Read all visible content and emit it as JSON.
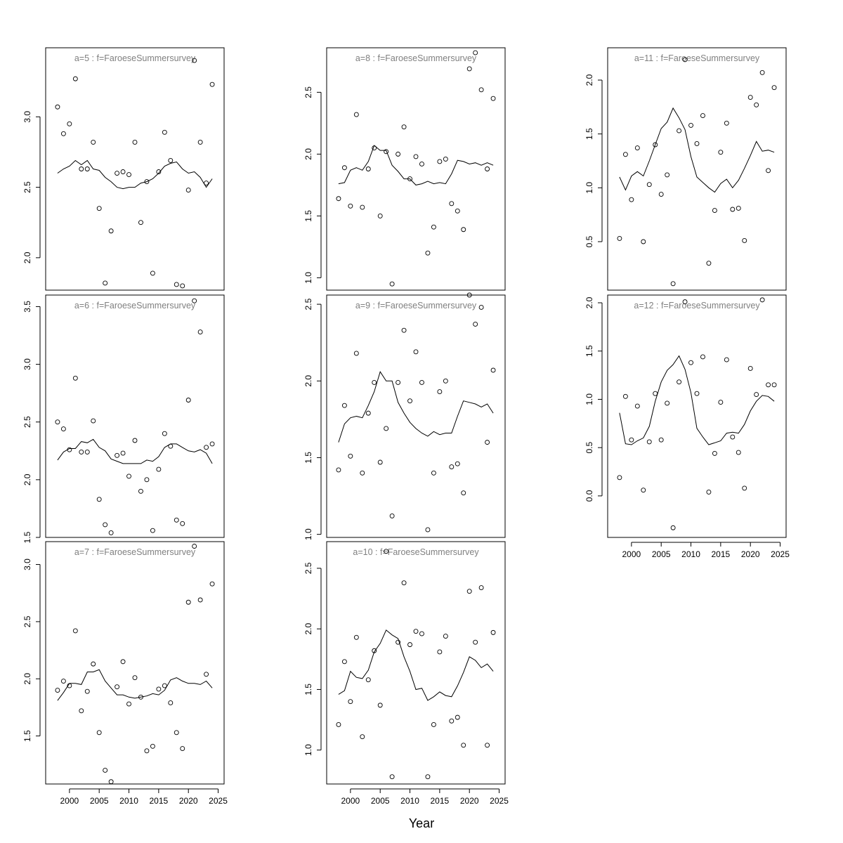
{
  "figure": {
    "xlabel": "Year"
  },
  "chart_data": [
    {
      "type": "scatter",
      "title": "a=5  :  f=FaroeseSummersurvey",
      "xlim": [
        1996,
        2026
      ],
      "ylim": [
        1.77,
        3.49
      ],
      "xticks": [
        2000,
        2005,
        2010,
        2015,
        2020,
        2025
      ],
      "yticks": [
        2.0,
        2.5,
        3.0
      ],
      "x_axis_shown": false,
      "points": {
        "x": [
          1998,
          1999,
          2000,
          2001,
          2002,
          2003,
          2004,
          2005,
          2006,
          2007,
          2008,
          2009,
          2010,
          2011,
          2012,
          2013,
          2014,
          2015,
          2016,
          2017,
          2018,
          2019,
          2020,
          2021,
          2022,
          2023,
          2024
        ],
        "y": [
          3.07,
          2.88,
          2.95,
          3.27,
          2.63,
          2.63,
          2.82,
          2.35,
          1.82,
          2.19,
          2.6,
          2.61,
          2.59,
          2.82,
          2.25,
          2.54,
          1.89,
          2.61,
          2.89,
          2.69,
          1.81,
          1.8,
          2.48,
          3.4,
          2.82,
          2.53,
          3.23
        ]
      },
      "fit": {
        "x": [
          1998,
          1999,
          2000,
          2001,
          2002,
          2003,
          2004,
          2005,
          2006,
          2007,
          2008,
          2009,
          2010,
          2011,
          2012,
          2013,
          2014,
          2015,
          2016,
          2017,
          2018,
          2019,
          2020,
          2021,
          2022,
          2023,
          2024
        ],
        "y": [
          2.6,
          2.63,
          2.65,
          2.69,
          2.66,
          2.69,
          2.63,
          2.62,
          2.57,
          2.54,
          2.5,
          2.49,
          2.5,
          2.5,
          2.53,
          2.54,
          2.56,
          2.6,
          2.65,
          2.67,
          2.68,
          2.63,
          2.6,
          2.61,
          2.57,
          2.5,
          2.56
        ]
      }
    },
    {
      "type": "scatter",
      "title": "a=6  :  f=FaroeseSummersurvey",
      "xlim": [
        1996,
        2026
      ],
      "ylim": [
        1.5,
        3.6
      ],
      "xticks": [
        2000,
        2005,
        2010,
        2015,
        2020,
        2025
      ],
      "yticks": [
        1.5,
        2.0,
        2.5,
        3.0,
        3.5
      ],
      "x_axis_shown": false,
      "points": {
        "x": [
          1998,
          1999,
          2000,
          2001,
          2002,
          2003,
          2004,
          2005,
          2006,
          2007,
          2008,
          2009,
          2010,
          2011,
          2012,
          2013,
          2014,
          2015,
          2016,
          2017,
          2018,
          2019,
          2020,
          2021,
          2022,
          2023,
          2024
        ],
        "y": [
          2.5,
          2.44,
          2.26,
          2.88,
          2.24,
          2.24,
          2.51,
          1.83,
          1.61,
          1.54,
          2.21,
          2.23,
          2.03,
          2.34,
          1.9,
          2.0,
          1.56,
          2.09,
          2.4,
          2.29,
          1.65,
          1.62,
          2.69,
          3.55,
          3.28,
          2.28,
          2.31
        ]
      },
      "fit": {
        "x": [
          1998,
          1999,
          2000,
          2001,
          2002,
          2003,
          2004,
          2005,
          2006,
          2007,
          2008,
          2009,
          2010,
          2011,
          2012,
          2013,
          2014,
          2015,
          2016,
          2017,
          2018,
          2019,
          2020,
          2021,
          2022,
          2023,
          2024
        ],
        "y": [
          2.17,
          2.24,
          2.27,
          2.27,
          2.33,
          2.32,
          2.35,
          2.28,
          2.25,
          2.18,
          2.16,
          2.14,
          2.14,
          2.14,
          2.14,
          2.17,
          2.16,
          2.2,
          2.28,
          2.31,
          2.31,
          2.28,
          2.25,
          2.24,
          2.26,
          2.23,
          2.14
        ]
      }
    },
    {
      "type": "scatter",
      "title": "a=7  :  f=FaroeseSummersurvey",
      "xlim": [
        1996,
        2026
      ],
      "ylim": [
        1.08,
        3.2
      ],
      "xticks": [
        2000,
        2005,
        2010,
        2015,
        2020,
        2025
      ],
      "yticks": [
        1.5,
        2.0,
        2.5,
        3.0
      ],
      "x_axis_shown": true,
      "points": {
        "x": [
          1998,
          1999,
          2000,
          2001,
          2002,
          2003,
          2004,
          2005,
          2006,
          2007,
          2008,
          2009,
          2010,
          2011,
          2012,
          2013,
          2014,
          2015,
          2016,
          2017,
          2018,
          2019,
          2020,
          2021,
          2022,
          2023,
          2024
        ],
        "y": [
          1.9,
          1.98,
          1.94,
          2.42,
          1.72,
          1.89,
          2.13,
          1.53,
          1.2,
          1.1,
          1.93,
          2.15,
          1.78,
          2.01,
          1.84,
          1.37,
          1.41,
          1.91,
          1.94,
          1.79,
          1.53,
          1.39,
          2.67,
          3.16,
          2.69,
          2.04,
          2.83
        ]
      },
      "fit": {
        "x": [
          1998,
          1999,
          2000,
          2001,
          2002,
          2003,
          2004,
          2005,
          2006,
          2007,
          2008,
          2009,
          2010,
          2011,
          2012,
          2013,
          2014,
          2015,
          2016,
          2017,
          2018,
          2019,
          2020,
          2021,
          2022,
          2023,
          2024
        ],
        "y": [
          1.81,
          1.88,
          1.96,
          1.96,
          1.95,
          2.06,
          2.06,
          2.08,
          1.98,
          1.92,
          1.86,
          1.86,
          1.84,
          1.83,
          1.84,
          1.85,
          1.87,
          1.86,
          1.9,
          1.99,
          2.01,
          1.98,
          1.96,
          1.96,
          1.95,
          1.98,
          1.92
        ]
      }
    },
    {
      "type": "scatter",
      "title": "a=8  :  f=FaroeseSummersurvey",
      "xlim": [
        1996,
        2026
      ],
      "ylim": [
        0.9,
        2.86
      ],
      "xticks": [
        2000,
        2005,
        2010,
        2015,
        2020,
        2025
      ],
      "yticks": [
        1.0,
        1.5,
        2.0,
        2.5
      ],
      "x_axis_shown": false,
      "points": {
        "x": [
          1998,
          1999,
          2000,
          2001,
          2002,
          2003,
          2004,
          2005,
          2006,
          2007,
          2008,
          2009,
          2010,
          2011,
          2012,
          2013,
          2014,
          2015,
          2016,
          2017,
          2018,
          2019,
          2020,
          2021,
          2022,
          2023,
          2024
        ],
        "y": [
          1.64,
          1.89,
          1.58,
          2.32,
          1.57,
          1.88,
          2.05,
          1.5,
          2.02,
          0.95,
          2.0,
          2.22,
          1.8,
          1.98,
          1.92,
          1.2,
          1.41,
          1.94,
          1.96,
          1.6,
          1.54,
          1.39,
          2.69,
          2.82,
          2.52,
          1.88,
          2.45
        ]
      },
      "fit": {
        "x": [
          1998,
          1999,
          2000,
          2001,
          2002,
          2003,
          2004,
          2005,
          2006,
          2007,
          2008,
          2009,
          2010,
          2011,
          2012,
          2013,
          2014,
          2015,
          2016,
          2017,
          2018,
          2019,
          2020,
          2021,
          2022,
          2023,
          2024
        ],
        "y": [
          1.76,
          1.77,
          1.87,
          1.89,
          1.87,
          1.94,
          2.07,
          2.03,
          2.03,
          1.91,
          1.86,
          1.8,
          1.8,
          1.75,
          1.76,
          1.78,
          1.76,
          1.77,
          1.76,
          1.84,
          1.95,
          1.94,
          1.92,
          1.93,
          1.91,
          1.93,
          1.91
        ]
      }
    },
    {
      "type": "scatter",
      "title": "a=9  :  f=FaroeseSummersurvey",
      "xlim": [
        1996,
        2026
      ],
      "ylim": [
        0.98,
        2.56
      ],
      "xticks": [
        2000,
        2005,
        2010,
        2015,
        2020,
        2025
      ],
      "yticks": [
        1.0,
        1.5,
        2.0,
        2.5
      ],
      "x_axis_shown": false,
      "points": {
        "x": [
          1998,
          1999,
          2000,
          2001,
          2002,
          2003,
          2004,
          2005,
          2006,
          2007,
          2008,
          2009,
          2010,
          2011,
          2012,
          2013,
          2014,
          2015,
          2016,
          2017,
          2018,
          2019,
          2020,
          2021,
          2022,
          2023,
          2024
        ],
        "y": [
          1.42,
          1.84,
          1.51,
          2.18,
          1.4,
          1.79,
          1.99,
          1.47,
          1.69,
          1.12,
          1.99,
          2.33,
          1.87,
          2.19,
          1.99,
          1.03,
          1.4,
          1.93,
          2.0,
          1.44,
          1.46,
          1.27,
          2.56,
          2.37,
          2.48,
          1.6,
          2.07
        ]
      },
      "fit": {
        "x": [
          1998,
          1999,
          2000,
          2001,
          2002,
          2003,
          2004,
          2005,
          2006,
          2007,
          2008,
          2009,
          2010,
          2011,
          2012,
          2013,
          2014,
          2015,
          2016,
          2017,
          2018,
          2019,
          2020,
          2021,
          2022,
          2023,
          2024
        ],
        "y": [
          1.6,
          1.72,
          1.76,
          1.77,
          1.76,
          1.84,
          1.93,
          2.06,
          2.0,
          2.0,
          1.86,
          1.79,
          1.73,
          1.69,
          1.66,
          1.64,
          1.67,
          1.65,
          1.66,
          1.66,
          1.77,
          1.87,
          1.86,
          1.85,
          1.83,
          1.85,
          1.79
        ]
      }
    },
    {
      "type": "scatter",
      "title": "a=10  :  f=FaroeseSummersurvey",
      "xlim": [
        1996,
        2026
      ],
      "ylim": [
        0.72,
        2.72
      ],
      "xticks": [
        2000,
        2005,
        2010,
        2015,
        2020,
        2025
      ],
      "yticks": [
        1.0,
        1.5,
        2.0,
        2.5
      ],
      "x_axis_shown": true,
      "points": {
        "x": [
          1998,
          1999,
          2000,
          2001,
          2002,
          2003,
          2004,
          2005,
          2006,
          2007,
          2008,
          2009,
          2010,
          2011,
          2012,
          2013,
          2014,
          2015,
          2016,
          2017,
          2018,
          2019,
          2020,
          2021,
          2022,
          2023,
          2024
        ],
        "y": [
          1.21,
          1.73,
          1.4,
          1.93,
          1.11,
          1.58,
          1.82,
          1.37,
          2.64,
          0.78,
          1.89,
          2.38,
          1.87,
          1.98,
          1.96,
          0.78,
          1.21,
          1.81,
          1.94,
          1.24,
          1.27,
          1.04,
          2.31,
          1.89,
          2.34,
          1.04,
          1.97
        ]
      },
      "fit": {
        "x": [
          1998,
          1999,
          2000,
          2001,
          2002,
          2003,
          2004,
          2005,
          2006,
          2007,
          2008,
          2009,
          2010,
          2011,
          2012,
          2013,
          2014,
          2015,
          2016,
          2017,
          2018,
          2019,
          2020,
          2021,
          2022,
          2023,
          2024
        ],
        "y": [
          1.46,
          1.49,
          1.65,
          1.6,
          1.59,
          1.66,
          1.81,
          1.88,
          1.99,
          1.95,
          1.92,
          1.77,
          1.65,
          1.5,
          1.51,
          1.41,
          1.44,
          1.48,
          1.45,
          1.44,
          1.53,
          1.64,
          1.77,
          1.74,
          1.68,
          1.71,
          1.65
        ]
      }
    },
    {
      "type": "scatter",
      "title": "a=11  :  f=FaroeseSummersurvey",
      "xlim": [
        1996,
        2026
      ],
      "ylim": [
        0.05,
        2.3
      ],
      "xticks": [
        2000,
        2005,
        2010,
        2015,
        2020,
        2025
      ],
      "yticks": [
        0.5,
        1.0,
        1.5,
        2.0
      ],
      "x_axis_shown": false,
      "points": {
        "x": [
          1998,
          1999,
          2000,
          2001,
          2002,
          2003,
          2004,
          2005,
          2006,
          2007,
          2008,
          2009,
          2010,
          2011,
          2012,
          2013,
          2014,
          2015,
          2016,
          2017,
          2018,
          2019,
          2020,
          2021,
          2022,
          2023,
          2024
        ],
        "y": [
          0.53,
          1.31,
          0.89,
          1.37,
          0.5,
          1.03,
          1.4,
          0.94,
          1.12,
          0.11,
          1.53,
          2.19,
          1.58,
          1.41,
          1.67,
          0.3,
          0.79,
          1.33,
          1.6,
          0.8,
          0.81,
          0.51,
          1.84,
          1.77,
          2.07,
          1.16,
          1.93
        ]
      },
      "fit": {
        "x": [
          1998,
          1999,
          2000,
          2001,
          2002,
          2003,
          2004,
          2005,
          2006,
          2007,
          2008,
          2009,
          2010,
          2011,
          2012,
          2013,
          2014,
          2015,
          2016,
          2017,
          2018,
          2019,
          2020,
          2021,
          2022,
          2023,
          2024
        ],
        "y": [
          1.1,
          0.98,
          1.11,
          1.15,
          1.11,
          1.25,
          1.4,
          1.55,
          1.61,
          1.74,
          1.65,
          1.54,
          1.29,
          1.1,
          1.05,
          1.0,
          0.96,
          1.04,
          1.08,
          1.0,
          1.07,
          1.18,
          1.3,
          1.43,
          1.34,
          1.35,
          1.33
        ]
      }
    },
    {
      "type": "scatter",
      "title": "a=12  :  f=FaroeseSummersurvey",
      "xlim": [
        1996,
        2026
      ],
      "ylim": [
        -0.43,
        2.08
      ],
      "xticks": [
        2000,
        2005,
        2010,
        2015,
        2020,
        2025
      ],
      "yticks": [
        0.0,
        0.5,
        1.0,
        1.5,
        2.0
      ],
      "x_axis_shown": true,
      "points": {
        "x": [
          1998,
          1999,
          2000,
          2001,
          2002,
          2003,
          2004,
          2005,
          2006,
          2007,
          2008,
          2009,
          2010,
          2011,
          2012,
          2013,
          2014,
          2015,
          2016,
          2017,
          2018,
          2019,
          2020,
          2021,
          2022,
          2023,
          2024
        ],
        "y": [
          0.19,
          1.03,
          0.58,
          0.93,
          0.06,
          0.56,
          1.06,
          0.58,
          0.96,
          -0.33,
          1.18,
          2.01,
          1.38,
          1.06,
          1.44,
          0.04,
          0.44,
          0.97,
          1.41,
          0.61,
          0.45,
          0.08,
          1.32,
          1.05,
          2.03,
          1.15,
          1.15
        ]
      },
      "fit": {
        "x": [
          1998,
          1999,
          2000,
          2001,
          2002,
          2003,
          2004,
          2005,
          2006,
          2007,
          2008,
          2009,
          2010,
          2011,
          2012,
          2013,
          2014,
          2015,
          2016,
          2017,
          2018,
          2019,
          2020,
          2021,
          2022,
          2023,
          2024
        ],
        "y": [
          0.86,
          0.54,
          0.53,
          0.57,
          0.6,
          0.72,
          0.98,
          1.18,
          1.3,
          1.36,
          1.45,
          1.31,
          1.07,
          0.7,
          0.61,
          0.53,
          0.55,
          0.57,
          0.65,
          0.66,
          0.65,
          0.74,
          0.88,
          0.98,
          1.04,
          1.03,
          0.98
        ]
      }
    }
  ]
}
